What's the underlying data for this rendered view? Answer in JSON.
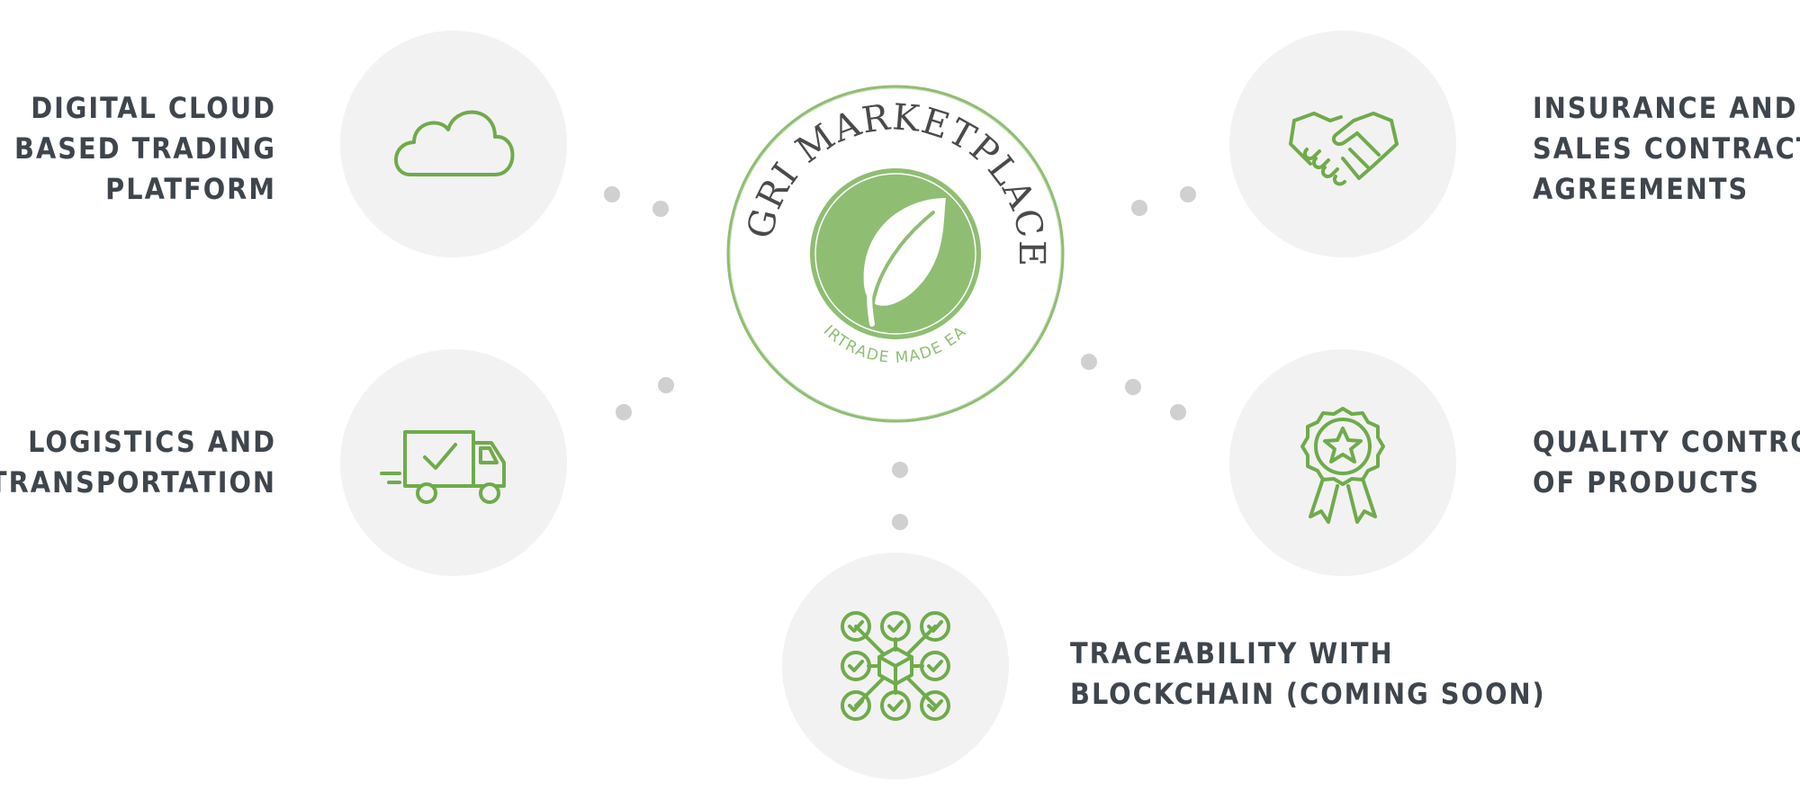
{
  "logo": {
    "brand": "AGRI MARKETPLACE",
    "tagline": "FAIRTRADE MADE EASY",
    "icon": "leaf-icon"
  },
  "features": {
    "cloud": {
      "lines": [
        "DIGITAL CLOUD",
        "BASED TRADING",
        "PLATFORM"
      ],
      "icon": "cloud-icon"
    },
    "logistics": {
      "lines": [
        "LOGISTICS AND",
        "TRANSPORTATION"
      ],
      "icon": "delivery-truck-icon"
    },
    "insurance": {
      "lines": [
        "INSURANCE AND",
        "SALES CONTRACT",
        "AGREEMENTS"
      ],
      "icon": "handshake-icon"
    },
    "quality": {
      "lines": [
        "QUALITY CONTROL",
        "OF PRODUCTS"
      ],
      "icon": "award-badge-icon"
    },
    "traceability": {
      "lines": [
        "TRACEABILITY WITH",
        "BLOCKCHAIN (COMING SOON)"
      ],
      "icon": "blockchain-network-icon"
    }
  },
  "colors": {
    "accent_green": "#6fab4a",
    "logo_green": "#8fbe72",
    "circle_bg": "#f2f2f2",
    "text": "#3e454c",
    "dot": "#d0d0d0"
  }
}
